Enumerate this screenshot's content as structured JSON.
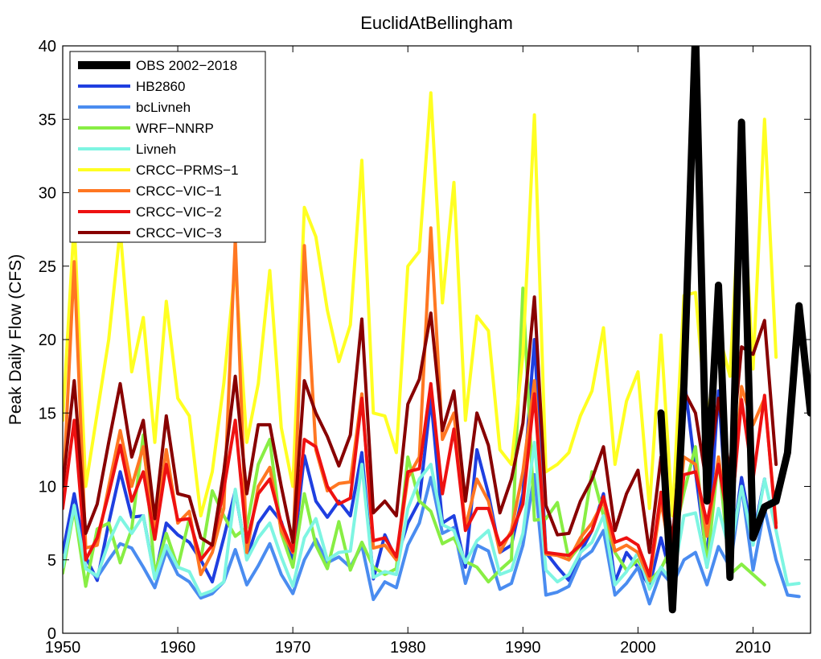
{
  "chart_data": {
    "type": "line",
    "title": "EuclidAtBellingham",
    "xlabel": "",
    "ylabel": "Peak Daily Flow (CFS)",
    "xlim": [
      1950,
      2015
    ],
    "ylim": [
      0,
      40
    ],
    "xticks": [
      1950,
      1960,
      1970,
      1980,
      1990,
      2000,
      2010
    ],
    "yticks": [
      0,
      5,
      10,
      15,
      20,
      25,
      30,
      35,
      40
    ],
    "grid": false,
    "legend_position": "top-left",
    "series": [
      {
        "name": "OBS 2002−2018",
        "color": "#000000",
        "width": 9,
        "start": 2002,
        "values": [
          15.0,
          1.6,
          17.0,
          41.0,
          9.0,
          23.7,
          3.8,
          34.8,
          6.5,
          8.6,
          9.0,
          12.3,
          22.3,
          15.0
        ]
      },
      {
        "name": "HB2860",
        "color": "#1f3fe0",
        "width": 4,
        "start": 1950,
        "values": [
          5.5,
          9.5,
          5.2,
          3.6,
          7.5,
          11.0,
          7.9,
          8.0,
          3.8,
          7.5,
          6.7,
          6.2,
          5.0,
          3.5,
          6.5,
          9.7,
          5.1,
          7.5,
          8.6,
          7.6,
          5.0,
          12.1,
          9.0,
          7.9,
          9.0,
          8.0,
          12.3,
          3.7,
          6.7,
          5.0,
          7.5,
          9.0,
          16.0,
          7.5,
          8.0,
          4.5,
          12.5,
          9.5,
          5.5,
          6.0,
          9.5,
          20.0,
          5.5,
          4.5,
          3.6,
          5.5,
          7.0,
          9.5,
          3.5,
          5.5,
          4.5,
          3.2,
          6.5,
          3.5,
          17.5,
          11.0,
          5.0,
          16.5,
          5.0,
          10.6,
          6.5,
          10.5
        ]
      },
      {
        "name": "bcLivneh",
        "color": "#4a8cf0",
        "width": 4,
        "start": 1950,
        "values": [
          4.5,
          8.5,
          4.5,
          3.8,
          5.0,
          6.1,
          5.8,
          4.5,
          3.1,
          5.6,
          4.0,
          3.5,
          2.4,
          2.7,
          3.5,
          5.7,
          3.3,
          4.6,
          6.1,
          4.0,
          2.7,
          5.0,
          6.4,
          4.8,
          5.2,
          4.5,
          6.0,
          2.3,
          3.5,
          3.1,
          6.0,
          7.5,
          10.6,
          6.8,
          7.2,
          3.4,
          6.0,
          5.6,
          3.0,
          3.4,
          6.0,
          10.8,
          2.6,
          2.8,
          3.2,
          5.0,
          5.6,
          7.0,
          2.6,
          3.4,
          4.5,
          2.0,
          4.2,
          3.3,
          5.0,
          5.5,
          3.3,
          5.9,
          4.5,
          10.0,
          4.3,
          8.5,
          5.0,
          2.6,
          2.5
        ]
      },
      {
        "name": "WRF−NNRP",
        "color": "#88ee44",
        "width": 4,
        "start": 1950,
        "values": [
          4.1,
          8.5,
          3.2,
          7.1,
          7.5,
          4.8,
          7.1,
          13.5,
          4.0,
          6.8,
          4.5,
          7.8,
          5.0,
          9.7,
          8.0,
          6.6,
          7.2,
          11.5,
          13.2,
          6.8,
          4.5,
          9.5,
          6.0,
          4.4,
          7.6,
          4.3,
          6.2,
          4.5,
          4.0,
          4.4,
          12.0,
          9.0,
          8.3,
          6.1,
          6.5,
          4.9,
          4.5,
          3.5,
          4.3,
          5.0,
          23.5,
          7.7,
          7.8,
          8.9,
          5.0,
          6.0,
          11.0,
          8.0,
          5.5,
          4.3,
          5.0,
          3.5,
          4.4,
          6.0,
          9.6,
          12.7,
          4.5,
          12.0,
          4.0,
          4.7,
          4.0,
          3.3
        ]
      },
      {
        "name": "Livneh",
        "color": "#7ef5e2",
        "width": 4,
        "start": 1950,
        "values": [
          4.5,
          8.7,
          4.4,
          3.9,
          6.2,
          7.9,
          6.8,
          8.0,
          3.7,
          6.0,
          4.5,
          4.2,
          2.6,
          2.9,
          3.5,
          9.8,
          5.0,
          6.5,
          7.5,
          5.2,
          3.2,
          6.5,
          7.8,
          5.0,
          5.5,
          5.6,
          11.5,
          3.8,
          4.2,
          4.0,
          8.5,
          10.5,
          11.5,
          7.4,
          7.0,
          4.8,
          6.3,
          7.0,
          4.0,
          4.3,
          6.8,
          13.0,
          4.3,
          3.5,
          4.0,
          5.5,
          6.2,
          8.0,
          3.3,
          4.2,
          5.5,
          3.0,
          4.5,
          3.5,
          8.0,
          8.2,
          4.5,
          8.5,
          5.5,
          10.0,
          6.0,
          10.5,
          7.0,
          3.3,
          3.4
        ]
      },
      {
        "name": "CRCC−PRMS−1",
        "color": "#ffff22",
        "width": 4,
        "start": 1950,
        "values": [
          14.5,
          28.0,
          10.0,
          15.0,
          20.0,
          27.5,
          17.8,
          21.5,
          13.0,
          22.6,
          16.0,
          14.8,
          8.0,
          11.0,
          17.0,
          25.0,
          13.0,
          17.0,
          24.7,
          14.0,
          10.0,
          29.0,
          27.0,
          22.0,
          18.5,
          21.0,
          32.2,
          15.0,
          14.8,
          12.3,
          25.0,
          26.0,
          36.8,
          22.5,
          30.7,
          14.5,
          21.6,
          20.6,
          12.5,
          11.5,
          19.0,
          35.3,
          11.0,
          11.5,
          12.3,
          14.8,
          16.5,
          20.8,
          11.5,
          15.8,
          17.8,
          8.5,
          20.3,
          8.0,
          23.0,
          23.2,
          14.2,
          20.5,
          17.5,
          32.3,
          18.0,
          35.0,
          18.8
        ]
      },
      {
        "name": "CRCC−VIC−1",
        "color": "#ff7722",
        "width": 4,
        "start": 1950,
        "values": [
          9.0,
          25.3,
          5.8,
          6.0,
          10.0,
          13.8,
          10.0,
          12.7,
          6.8,
          12.5,
          7.5,
          8.3,
          4.0,
          5.5,
          8.5,
          26.8,
          5.5,
          10.0,
          11.3,
          7.0,
          5.5,
          26.4,
          12.5,
          9.7,
          10.2,
          10.3,
          16.3,
          5.8,
          6.0,
          5.0,
          10.6,
          12.0,
          27.6,
          13.2,
          15.0,
          7.2,
          10.5,
          9.0,
          5.5,
          7.0,
          11.0,
          17.2,
          5.4,
          5.3,
          5.0,
          6.5,
          7.5,
          9.0,
          5.6,
          6.0,
          5.5,
          3.6,
          9.0,
          4.5,
          12.0,
          11.5,
          6.6,
          12.0,
          6.5,
          16.8,
          14.2,
          16.0,
          7.5
        ]
      },
      {
        "name": "CRCC−VIC−2",
        "color": "#ee1111",
        "width": 4,
        "start": 1950,
        "values": [
          8.5,
          14.5,
          5.0,
          6.5,
          9.5,
          12.8,
          9.0,
          11.0,
          6.4,
          11.5,
          7.7,
          7.8,
          5.0,
          6.0,
          9.8,
          14.5,
          6.2,
          9.5,
          10.5,
          7.5,
          5.6,
          13.2,
          12.7,
          10.0,
          8.8,
          9.2,
          16.0,
          6.3,
          6.5,
          5.2,
          11.0,
          11.2,
          17.0,
          9.5,
          13.9,
          7.0,
          8.5,
          8.5,
          6.0,
          6.8,
          8.8,
          16.3,
          5.5,
          5.4,
          5.3,
          6.0,
          7.0,
          9.3,
          6.2,
          6.5,
          6.0,
          3.9,
          9.6,
          4.2,
          10.8,
          11.0,
          7.5,
          11.5,
          7.0,
          15.9,
          10.5,
          16.2,
          7.2
        ]
      },
      {
        "name": "CRCC−VIC−3",
        "color": "#880000",
        "width": 4,
        "start": 1950,
        "values": [
          10.0,
          17.2,
          6.8,
          8.8,
          13.0,
          17.0,
          12.0,
          14.5,
          7.8,
          14.8,
          9.5,
          9.3,
          6.5,
          6.0,
          11.0,
          17.5,
          9.5,
          14.2,
          14.2,
          10.0,
          6.2,
          17.2,
          15.0,
          13.4,
          11.4,
          13.5,
          21.4,
          8.2,
          9.0,
          8.0,
          15.6,
          17.3,
          21.8,
          13.8,
          16.5,
          9.0,
          15.0,
          12.8,
          8.2,
          10.5,
          14.3,
          22.9,
          8.7,
          6.7,
          6.8,
          9.0,
          10.5,
          12.7,
          7.0,
          9.5,
          11.1,
          5.5,
          12.0,
          6.2,
          16.5,
          15.0,
          10.0,
          16.0,
          11.0,
          19.5,
          19.0,
          21.3,
          11.5
        ]
      }
    ]
  }
}
